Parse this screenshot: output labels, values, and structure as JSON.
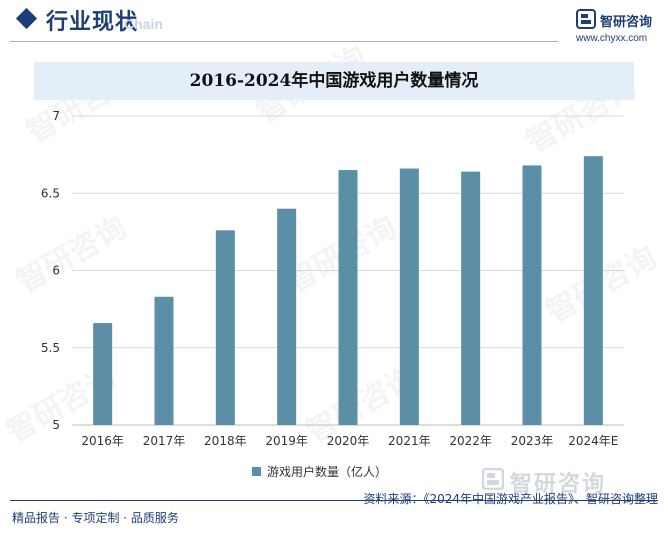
{
  "header": {
    "title": "行业现状",
    "subtitle": "Chain",
    "brand_name": "智研咨询",
    "brand_url": "www.chyxx.com"
  },
  "colors": {
    "brand": "#1f3e78",
    "bar": "#5b8fa8",
    "title_bg": "#e3eef8",
    "grid": "#d9d9d9"
  },
  "chart_data": {
    "type": "bar",
    "title": "2016-2024年中国游戏用户数量情况",
    "categories": [
      "2016年",
      "2017年",
      "2018年",
      "2019年",
      "2020年",
      "2021年",
      "2022年",
      "2023年",
      "2024年E"
    ],
    "series": [
      {
        "name": "游戏用户数量（亿人）",
        "values": [
          5.66,
          5.83,
          6.26,
          6.4,
          6.65,
          6.66,
          6.64,
          6.68,
          6.74
        ]
      }
    ],
    "ylim": [
      5,
      7
    ],
    "yticks": [
      "5",
      "5.5",
      "6",
      "6.5",
      "7"
    ],
    "grid": true,
    "legend_position": "bottom"
  },
  "footer": {
    "left": "精品报告 · 专项定制 · 品质服务",
    "source": "资料来源：《2024年中国游戏产业报告》、智研咨询整理",
    "logo_text": "智研咨询"
  },
  "watermark": {
    "text": "智研咨询"
  }
}
